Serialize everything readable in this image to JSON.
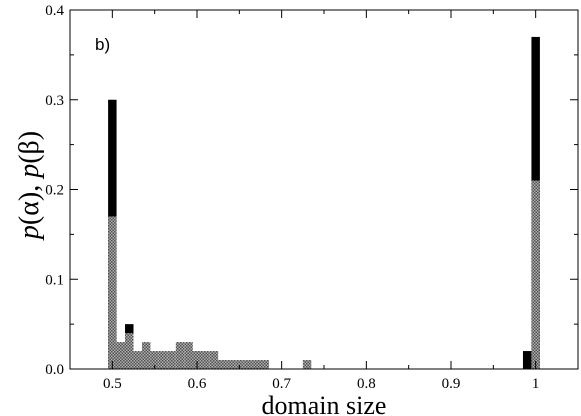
{
  "chart_data": {
    "type": "bar",
    "panel_label": "b)",
    "xlabel": "domain size",
    "ylabel": "p(α), p(β)",
    "xlim": [
      0.45,
      1.05
    ],
    "ylim": [
      0,
      0.4
    ],
    "x_ticks": [
      "0.5",
      "0.6",
      "0.7",
      "0.8",
      "0.9",
      "1"
    ],
    "y_ticks": [
      "0.0",
      "0.1",
      "0.2",
      "0.3",
      "0.4"
    ],
    "bin_width": 0.01,
    "grid": false,
    "colors": {
      "alpha": "#000000",
      "beta": "#808080"
    },
    "series": [
      {
        "id": "alpha",
        "style": "solid-black",
        "points": [
          {
            "x": 0.5,
            "y": 0.3
          },
          {
            "x": 0.51,
            "y": 0.02
          },
          {
            "x": 0.52,
            "y": 0.05
          },
          {
            "x": 0.6,
            "y": 0.02
          },
          {
            "x": 0.63,
            "y": 0.01
          },
          {
            "x": 0.99,
            "y": 0.02
          },
          {
            "x": 1.0,
            "y": 0.37
          }
        ]
      },
      {
        "id": "beta",
        "style": "gray-checker",
        "points": [
          {
            "x": 0.5,
            "y": 0.17
          },
          {
            "x": 0.51,
            "y": 0.03
          },
          {
            "x": 0.52,
            "y": 0.04
          },
          {
            "x": 0.53,
            "y": 0.02
          },
          {
            "x": 0.54,
            "y": 0.03
          },
          {
            "x": 0.55,
            "y": 0.02
          },
          {
            "x": 0.56,
            "y": 0.02
          },
          {
            "x": 0.57,
            "y": 0.02
          },
          {
            "x": 0.58,
            "y": 0.03
          },
          {
            "x": 0.59,
            "y": 0.03
          },
          {
            "x": 0.6,
            "y": 0.02
          },
          {
            "x": 0.61,
            "y": 0.02
          },
          {
            "x": 0.62,
            "y": 0.02
          },
          {
            "x": 0.63,
            "y": 0.01
          },
          {
            "x": 0.64,
            "y": 0.01
          },
          {
            "x": 0.65,
            "y": 0.01
          },
          {
            "x": 0.66,
            "y": 0.01
          },
          {
            "x": 0.67,
            "y": 0.01
          },
          {
            "x": 0.68,
            "y": 0.01
          },
          {
            "x": 0.73,
            "y": 0.01
          },
          {
            "x": 1.0,
            "y": 0.21
          }
        ]
      }
    ]
  }
}
